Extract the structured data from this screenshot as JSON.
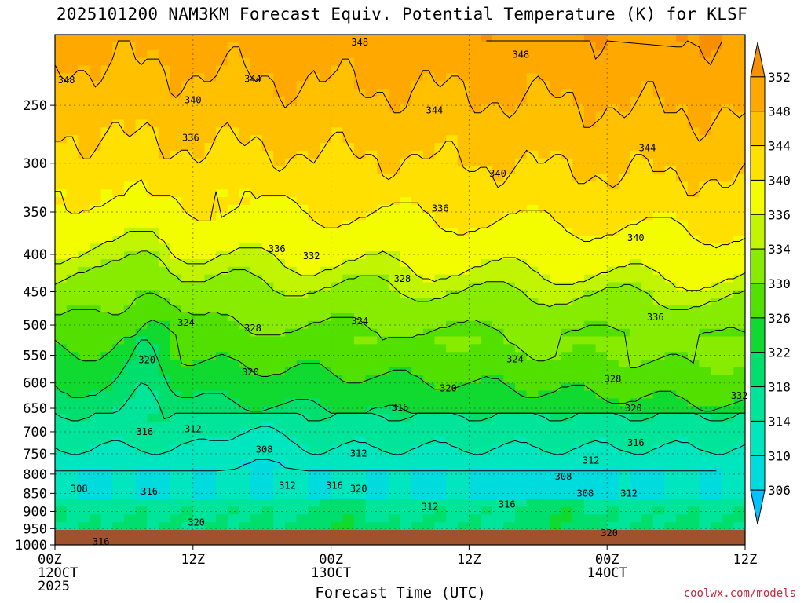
{
  "chart_data": {
    "type": "heatmap",
    "title": "2025101200 NAM3KM Forecast Equiv. Potential Temperature (K) for KLSF",
    "xlabel": "Forecast Time (UTC)",
    "ylabel": "",
    "x_ticks": [
      {
        "hour": 0,
        "lines": [
          "00Z",
          "12OCT",
          "2025"
        ]
      },
      {
        "hour": 12,
        "lines": [
          "12Z"
        ]
      },
      {
        "hour": 24,
        "lines": [
          "00Z",
          "13OCT"
        ]
      },
      {
        "hour": 36,
        "lines": [
          "12Z"
        ]
      },
      {
        "hour": 48,
        "lines": [
          "00Z",
          "14OCT"
        ]
      },
      {
        "hour": 60,
        "lines": [
          "12Z"
        ]
      }
    ],
    "xlim": [
      0,
      60
    ],
    "y_ticks": [
      250,
      300,
      350,
      400,
      450,
      500,
      550,
      600,
      650,
      700,
      750,
      800,
      850,
      900,
      950,
      1000
    ],
    "ylim_hpa": [
      200,
      1000
    ],
    "colorbar": {
      "levels": [
        306,
        310,
        314,
        318,
        322,
        326,
        330,
        334,
        336,
        340,
        344,
        348,
        352
      ],
      "labels": [
        "306",
        "310",
        "314",
        "318",
        "322",
        "326",
        "330",
        "334",
        "336",
        "340",
        "344",
        "348",
        "352"
      ],
      "colors": [
        "#00c3ff",
        "#00dcde",
        "#00e6be",
        "#00e599",
        "#00df6e",
        "#10d930",
        "#52e000",
        "#88ec00",
        "#c0f400",
        "#f4fc00",
        "#ffe000",
        "#ffc000",
        "#ffa800",
        "#f79000"
      ]
    },
    "contour_labels": [
      {
        "t": 26.5,
        "p": 205,
        "v": "348"
      },
      {
        "t": 40.5,
        "p": 213,
        "v": "348"
      },
      {
        "t": 1,
        "p": 231,
        "v": "348"
      },
      {
        "t": 17.2,
        "p": 230,
        "v": "344"
      },
      {
        "t": 33,
        "p": 254,
        "v": "344"
      },
      {
        "t": 51.5,
        "p": 286,
        "v": "344"
      },
      {
        "t": 12,
        "p": 246,
        "v": "340"
      },
      {
        "t": 38.5,
        "p": 310,
        "v": "340"
      },
      {
        "t": 50.5,
        "p": 380,
        "v": "340"
      },
      {
        "t": 11.8,
        "p": 277,
        "v": "336"
      },
      {
        "t": 33.5,
        "p": 346,
        "v": "336"
      },
      {
        "t": 19.3,
        "p": 393,
        "v": "336"
      },
      {
        "t": 52.2,
        "p": 488,
        "v": "336"
      },
      {
        "t": 22.3,
        "p": 402,
        "v": "332"
      },
      {
        "t": 59.5,
        "p": 625,
        "v": "332"
      },
      {
        "t": 30.2,
        "p": 432,
        "v": "328"
      },
      {
        "t": 17.2,
        "p": 505,
        "v": "328"
      },
      {
        "t": 48.5,
        "p": 592,
        "v": "328"
      },
      {
        "t": 11.4,
        "p": 496,
        "v": "324"
      },
      {
        "t": 26.5,
        "p": 494,
        "v": "324"
      },
      {
        "t": 40,
        "p": 557,
        "v": "324"
      },
      {
        "t": 8,
        "p": 558,
        "v": "320"
      },
      {
        "t": 17,
        "p": 580,
        "v": "320"
      },
      {
        "t": 34.2,
        "p": 610,
        "v": "320"
      },
      {
        "t": 50.3,
        "p": 650,
        "v": "320"
      },
      {
        "t": 26.4,
        "p": 838,
        "v": "320"
      },
      {
        "t": 12.3,
        "p": 932,
        "v": "320"
      },
      {
        "t": 48.2,
        "p": 963,
        "v": "320"
      },
      {
        "t": 7.8,
        "p": 700,
        "v": "316"
      },
      {
        "t": 30,
        "p": 648,
        "v": "316"
      },
      {
        "t": 50.5,
        "p": 725,
        "v": "316"
      },
      {
        "t": 24.3,
        "p": 830,
        "v": "316"
      },
      {
        "t": 39.3,
        "p": 880,
        "v": "316"
      },
      {
        "t": 8.2,
        "p": 845,
        "v": "316"
      },
      {
        "t": 4,
        "p": 990,
        "v": "316"
      },
      {
        "t": 12,
        "p": 694,
        "v": "312"
      },
      {
        "t": 20.2,
        "p": 830,
        "v": "312"
      },
      {
        "t": 26.4,
        "p": 749,
        "v": "312"
      },
      {
        "t": 46.6,
        "p": 766,
        "v": "312"
      },
      {
        "t": 49.9,
        "p": 850,
        "v": "312"
      },
      {
        "t": 32.6,
        "p": 887,
        "v": "312"
      },
      {
        "t": 18.2,
        "p": 740,
        "v": "308"
      },
      {
        "t": 44.2,
        "p": 806,
        "v": "308"
      },
      {
        "t": 46.1,
        "p": 850,
        "v": "308"
      },
      {
        "t": 2.1,
        "p": 838,
        "v": "308"
      }
    ]
  },
  "footer": {
    "credit": "coolwx.com/models"
  }
}
